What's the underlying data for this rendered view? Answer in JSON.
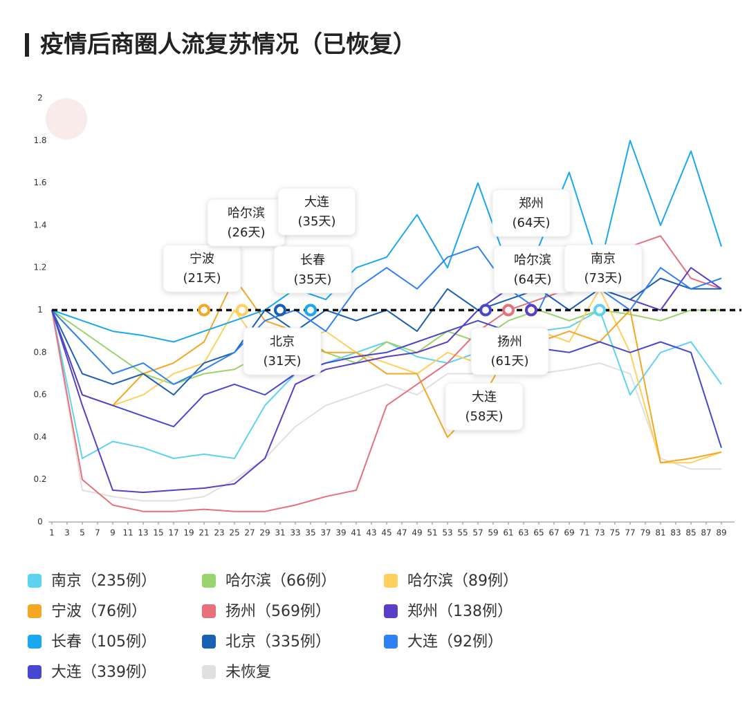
{
  "chart_data": {
    "type": "line",
    "title": "疫情后商圈人流复苏情况（已恢复）",
    "x": [
      1,
      5,
      9,
      13,
      17,
      21,
      25,
      29,
      33,
      37,
      41,
      45,
      49,
      53,
      57,
      61,
      65,
      69,
      73,
      77,
      81,
      85,
      89
    ],
    "xlim": [
      1,
      90
    ],
    "xticks": [
      1,
      3,
      5,
      7,
      9,
      11,
      13,
      15,
      17,
      19,
      21,
      23,
      25,
      27,
      29,
      31,
      33,
      35,
      37,
      39,
      41,
      43,
      45,
      47,
      49,
      51,
      53,
      55,
      57,
      59,
      61,
      63,
      65,
      67,
      69,
      71,
      73,
      75,
      77,
      79,
      81,
      83,
      85,
      87,
      89
    ],
    "ylim": [
      0,
      2
    ],
    "yticks": [
      0,
      0.2,
      0.4,
      0.6,
      0.8,
      1,
      1.2,
      1.4,
      1.6,
      1.8,
      2
    ],
    "reference_line": 1,
    "series": [
      {
        "name": "南京（235例）",
        "color": "#5dd3f0",
        "values": [
          1,
          0.3,
          0.38,
          0.35,
          0.3,
          0.32,
          0.3,
          0.55,
          0.7,
          0.75,
          0.8,
          0.85,
          0.78,
          0.75,
          0.8,
          0.85,
          0.9,
          0.92,
          1.0,
          0.6,
          0.8,
          0.85,
          0.65
        ]
      },
      {
        "name": "哈尔滨（66例）",
        "color": "#9bd46a",
        "values": [
          1,
          0.9,
          0.8,
          0.7,
          0.65,
          0.7,
          0.72,
          0.8,
          0.85,
          0.8,
          0.75,
          0.85,
          0.8,
          0.9,
          0.85,
          0.95,
          1.0,
          0.95,
          1.0,
          0.98,
          0.95,
          1.0,
          1.0
        ]
      },
      {
        "name": "哈尔滨（89例）",
        "color": "#ffd05e",
        "values": [
          1,
          0.6,
          0.55,
          0.6,
          0.7,
          0.75,
          1.0,
          0.8,
          0.85,
          0.9,
          0.8,
          0.75,
          0.7,
          0.8,
          0.75,
          0.8,
          0.9,
          0.85,
          1.1,
          0.8,
          0.28,
          0.28,
          0.33
        ]
      },
      {
        "name": "宁波（76例）",
        "color": "#f5a623",
        "values": [
          1,
          0.6,
          0.55,
          0.7,
          0.75,
          0.85,
          1.15,
          0.95,
          0.9,
          0.8,
          0.8,
          0.7,
          0.7,
          0.4,
          0.55,
          0.8,
          0.85,
          0.9,
          0.85,
          1.0,
          0.28,
          0.3,
          0.33
        ]
      },
      {
        "name": "扬州（569例）",
        "color": "#e8707a",
        "values": [
          1,
          0.2,
          0.08,
          0.05,
          0.05,
          0.06,
          0.05,
          0.05,
          0.08,
          0.12,
          0.15,
          0.55,
          0.65,
          0.75,
          0.9,
          1.0,
          1.05,
          1.1,
          1.2,
          1.3,
          1.35,
          1.15,
          1.1
        ]
      },
      {
        "name": "郑州（138例）",
        "color": "#5b3ec8",
        "values": [
          1,
          0.55,
          0.15,
          0.14,
          0.15,
          0.16,
          0.18,
          0.3,
          0.65,
          0.72,
          0.75,
          0.78,
          0.8,
          0.85,
          1.0,
          1.1,
          1.2,
          1.15,
          1.1,
          1.05,
          1.0,
          1.2,
          1.1
        ]
      },
      {
        "name": "长春（105例）",
        "color": "#1aa7f0",
        "values": [
          1,
          0.95,
          0.9,
          0.88,
          0.85,
          0.9,
          0.95,
          1.0,
          1.1,
          1.05,
          1.2,
          1.25,
          1.45,
          1.2,
          1.6,
          1.2,
          1.3,
          1.65,
          1.2,
          1.8,
          1.4,
          1.75,
          1.3
        ]
      },
      {
        "name": "北京（335例）",
        "color": "#1a5fb4",
        "values": [
          1,
          0.7,
          0.65,
          0.7,
          0.6,
          0.75,
          0.8,
          1.0,
          0.9,
          1.0,
          0.95,
          1.0,
          0.9,
          1.1,
          1.0,
          1.05,
          1.1,
          1.0,
          1.1,
          1.05,
          1.15,
          1.1,
          1.1
        ]
      },
      {
        "name": "大连（92例）",
        "color": "#2f80f5",
        "values": [
          1,
          0.85,
          0.7,
          0.75,
          0.65,
          0.72,
          0.8,
          0.95,
          1.0,
          0.9,
          1.1,
          1.2,
          1.1,
          1.25,
          1.3,
          1.1,
          1.0,
          1.3,
          1.1,
          1.0,
          1.2,
          1.1,
          1.15
        ]
      },
      {
        "name": "大连（339例）",
        "color": "#4747d1",
        "values": [
          1,
          0.6,
          0.55,
          0.5,
          0.45,
          0.6,
          0.65,
          0.6,
          0.7,
          0.75,
          0.78,
          0.8,
          0.85,
          0.9,
          0.95,
          0.9,
          0.82,
          0.8,
          0.85,
          0.8,
          0.85,
          0.8,
          0.35
        ]
      },
      {
        "name": "未恢复",
        "color": "#e0e0e0",
        "values": [
          1,
          0.15,
          0.12,
          0.1,
          0.1,
          0.12,
          0.2,
          0.3,
          0.45,
          0.55,
          0.6,
          0.65,
          0.6,
          0.7,
          0.7,
          0.75,
          0.7,
          0.72,
          0.75,
          0.7,
          0.3,
          0.25,
          0.25
        ]
      }
    ],
    "annotations": [
      {
        "name": "宁波",
        "days": "(21天)",
        "x": 21,
        "color": "#f5a623"
      },
      {
        "name": "哈尔滨",
        "days": "(26天)",
        "x": 26,
        "color": "#ffd05e"
      },
      {
        "name": "北京",
        "days": "(31天)",
        "x": 31,
        "color": "#1a5fb4"
      },
      {
        "name": "大连",
        "days": "(35天)",
        "x": 35,
        "color": "#2f80f5"
      },
      {
        "name": "长春",
        "days": "(35天)",
        "x": 35,
        "color": "#1aa7f0"
      },
      {
        "name": "大连",
        "days": "(58天)",
        "x": 58,
        "color": "#4747d1"
      },
      {
        "name": "扬州",
        "days": "(61天)",
        "x": 61,
        "color": "#e8707a"
      },
      {
        "name": "哈尔滨",
        "days": "(64天)",
        "x": 64,
        "color": "#9bd46a"
      },
      {
        "name": "郑州",
        "days": "(64天)",
        "x": 64,
        "color": "#5b3ec8"
      },
      {
        "name": "南京",
        "days": "(73天)",
        "x": 73,
        "color": "#5dd3f0"
      }
    ]
  }
}
